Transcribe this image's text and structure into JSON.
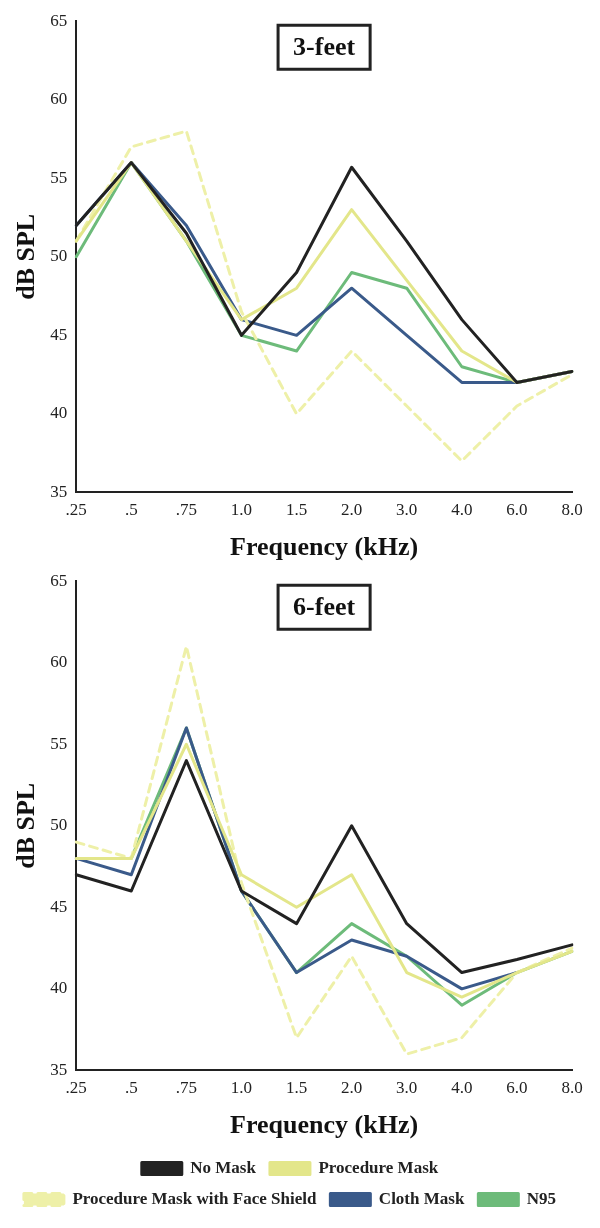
{
  "chart_data": [
    {
      "type": "line",
      "title": "3-feet",
      "xlabel": "Frequency (kHz)",
      "ylabel": "dB SPL",
      "categories": [
        ".25",
        ".5",
        ".75",
        "1.0",
        "1.5",
        "2.0",
        "3.0",
        "4.0",
        "6.0",
        "8.0"
      ],
      "ylim": [
        35,
        65
      ],
      "yticks": [
        35,
        40,
        45,
        50,
        55,
        60,
        65
      ],
      "grid": false,
      "legend": false,
      "marker": "none",
      "series": [
        {
          "color": "#222222",
          "line_style": "solid",
          "values": [
            52,
            56,
            51.5,
            45,
            49,
            55.7,
            51,
            46,
            42,
            42.7
          ]
        },
        {
          "color": "#e3e68a",
          "line_style": "solid",
          "values": [
            51,
            56,
            51,
            46,
            48,
            53,
            48.5,
            44,
            42,
            42.7
          ]
        },
        {
          "color": "#eef0a8",
          "line_style": "dashed",
          "values": [
            51,
            57,
            58,
            46.5,
            40,
            44,
            40.5,
            37,
            40.5,
            42.5
          ]
        },
        {
          "color": "#3a5a8a",
          "line_style": "solid",
          "values": [
            52,
            56,
            52,
            46,
            45,
            48,
            45,
            42,
            42,
            42.7
          ]
        },
        {
          "color": "#6dbb7a",
          "line_style": "solid",
          "values": [
            50,
            56,
            51,
            45,
            44,
            49,
            48,
            43,
            42,
            42.7
          ]
        }
      ]
    },
    {
      "type": "line",
      "title": "6-feet",
      "xlabel": "Frequency (kHz)",
      "ylabel": "dB SPL",
      "categories": [
        ".25",
        ".5",
        ".75",
        "1.0",
        "1.5",
        "2.0",
        "3.0",
        "4.0",
        "6.0",
        "8.0"
      ],
      "ylim": [
        35,
        65
      ],
      "yticks": [
        35,
        40,
        45,
        50,
        55,
        60,
        65
      ],
      "grid": false,
      "legend": "bottom",
      "marker": "none",
      "series": [
        {
          "name": "No Mask",
          "color": "#222222",
          "line_style": "solid",
          "values": [
            47,
            46,
            54,
            46,
            44,
            50,
            44,
            41,
            41.8,
            42.7
          ]
        },
        {
          "name": "Procedure Mask",
          "color": "#e3e68a",
          "line_style": "solid",
          "values": [
            48,
            48,
            55,
            47,
            45,
            47,
            41,
            39.5,
            41,
            42.3
          ]
        },
        {
          "name": "Procedure Mask with Face Shield",
          "color": "#eef0a8",
          "line_style": "dashed",
          "values": [
            49,
            48,
            61,
            46.5,
            37,
            42,
            36,
            37,
            41,
            42.5
          ]
        },
        {
          "name": "Cloth Mask",
          "color": "#3a5a8a",
          "line_style": "solid",
          "values": [
            48,
            47,
            56,
            46,
            41,
            43,
            42,
            40,
            41,
            null
          ]
        },
        {
          "name": "N95",
          "color": "#6dbb7a",
          "line_style": "solid",
          "values": [
            48,
            48,
            56,
            46,
            41,
            44,
            42,
            39,
            41,
            42.3
          ]
        }
      ]
    }
  ]
}
